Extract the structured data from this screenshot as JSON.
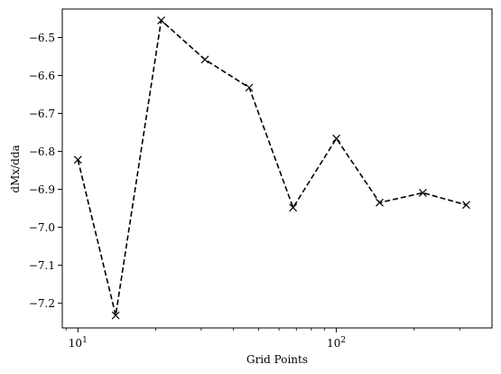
{
  "chart_data": {
    "type": "line",
    "title": "",
    "xlabel": "Grid Points",
    "ylabel": "dMx/dda",
    "xscale": "log",
    "xlim": [
      8.7,
      400
    ],
    "ylim": [
      -7.265,
      -6.425
    ],
    "grid": false,
    "legend": "none",
    "line_style": "dashed",
    "marker": "x",
    "color": "#000000",
    "x": [
      10,
      14,
      21,
      31,
      46,
      68,
      100,
      147,
      216,
      318
    ],
    "y": [
      -6.822,
      -7.232,
      -6.455,
      -6.558,
      -6.632,
      -6.948,
      -6.766,
      -6.935,
      -6.909,
      -6.941
    ],
    "xticks": [
      {
        "value": 10,
        "base": "10",
        "exp": "1"
      },
      {
        "value": 100,
        "base": "10",
        "exp": "2"
      }
    ],
    "yticks": [
      {
        "value": -6.5,
        "label": "−6.5"
      },
      {
        "value": -6.6,
        "label": "−6.6"
      },
      {
        "value": -6.7,
        "label": "−6.7"
      },
      {
        "value": -6.8,
        "label": "−6.8"
      },
      {
        "value": -6.9,
        "label": "−6.9"
      },
      {
        "value": -7.0,
        "label": "−7.0"
      },
      {
        "value": -7.1,
        "label": "−7.1"
      },
      {
        "value": -7.2,
        "label": "−7.2"
      }
    ]
  }
}
